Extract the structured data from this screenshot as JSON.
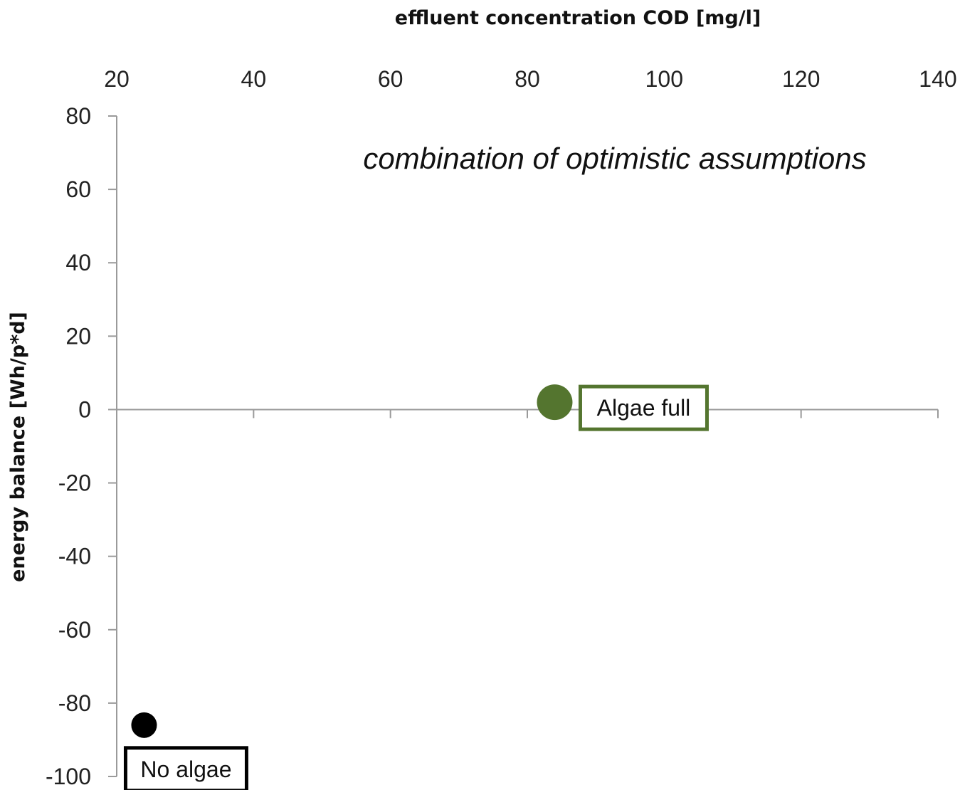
{
  "chart_data": {
    "type": "scatter",
    "title": "combination of optimistic assumptions",
    "xlabel": "effluent concentration COD [mg/l]",
    "ylabel": "energy balance [Wh/p*d]",
    "xlim": [
      20,
      140
    ],
    "ylim": [
      -100,
      80
    ],
    "x_ticks": [
      20,
      40,
      60,
      80,
      100,
      120,
      140
    ],
    "y_ticks": [
      80,
      60,
      40,
      20,
      0,
      -20,
      -40,
      -60,
      -80,
      -100
    ],
    "x_axis_position": "top",
    "grid": false,
    "points": [
      {
        "name": "No algae",
        "x": 24,
        "y": -86,
        "color": "#000000",
        "label_color": "#000000"
      },
      {
        "name": "Algae full",
        "x": 84,
        "y": 2,
        "color": "#54752f",
        "label_color": "#54752f"
      }
    ]
  }
}
